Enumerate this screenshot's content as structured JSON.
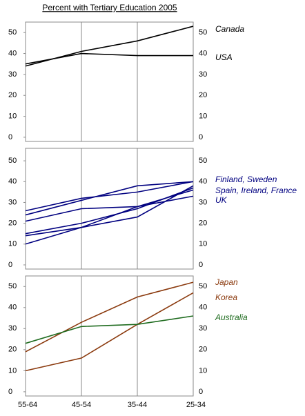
{
  "chart_data": [
    {
      "type": "line",
      "title": "Percent with Tertiary Education 2005",
      "ylim": [
        -2,
        55
      ],
      "yticks": [
        0,
        10,
        20,
        30,
        40,
        50
      ],
      "grid": true,
      "series": [
        {
          "color": "#000000",
          "values": [
            34,
            41,
            46,
            53
          ]
        },
        {
          "color": "#000000",
          "values": [
            35,
            40,
            39,
            39
          ]
        }
      ],
      "annotations": [
        {
          "text": "Canada",
          "color": "#000000"
        },
        {
          "text": "USA",
          "color": "#000000"
        }
      ]
    },
    {
      "type": "line",
      "ylim": [
        -2,
        56
      ],
      "yticks": [
        0,
        10,
        20,
        30,
        40,
        50
      ],
      "grid": true,
      "series": [
        {
          "color": "#000080",
          "values": [
            26,
            32,
            35,
            40
          ]
        },
        {
          "color": "#000080",
          "values": [
            24,
            31,
            38,
            40
          ]
        },
        {
          "color": "#000080",
          "values": [
            21,
            27,
            28,
            33
          ]
        },
        {
          "color": "#000080",
          "values": [
            15,
            20,
            27,
            37
          ]
        },
        {
          "color": "#000080",
          "values": [
            14,
            18,
            23,
            38
          ]
        },
        {
          "color": "#000080",
          "values": [
            10,
            18,
            28,
            36
          ]
        }
      ],
      "annotations": [
        {
          "text": "Finland, Sweden",
          "color": "#000080"
        },
        {
          "text": "Spain, Ireland, France",
          "color": "#000080"
        },
        {
          "text": "UK",
          "color": "#000080"
        }
      ]
    },
    {
      "type": "line",
      "ylim": [
        -2,
        55
      ],
      "yticks": [
        0,
        10,
        20,
        30,
        40,
        50
      ],
      "grid": true,
      "categories": [
        "55-64",
        "45-54",
        "35-44",
        "25-34"
      ],
      "series": [
        {
          "color": "#8b3a0e",
          "values": [
            19,
            33,
            45,
            52
          ]
        },
        {
          "color": "#8b3a0e",
          "values": [
            10,
            16,
            32,
            47
          ]
        },
        {
          "color": "#1e6b1e",
          "values": [
            23,
            31,
            32,
            36
          ]
        }
      ],
      "annotations": [
        {
          "text": "Japan",
          "color": "#8b3a0e"
        },
        {
          "text": "Korea",
          "color": "#8b3a0e"
        },
        {
          "text": "Australia",
          "color": "#1e6b1e"
        }
      ]
    }
  ]
}
